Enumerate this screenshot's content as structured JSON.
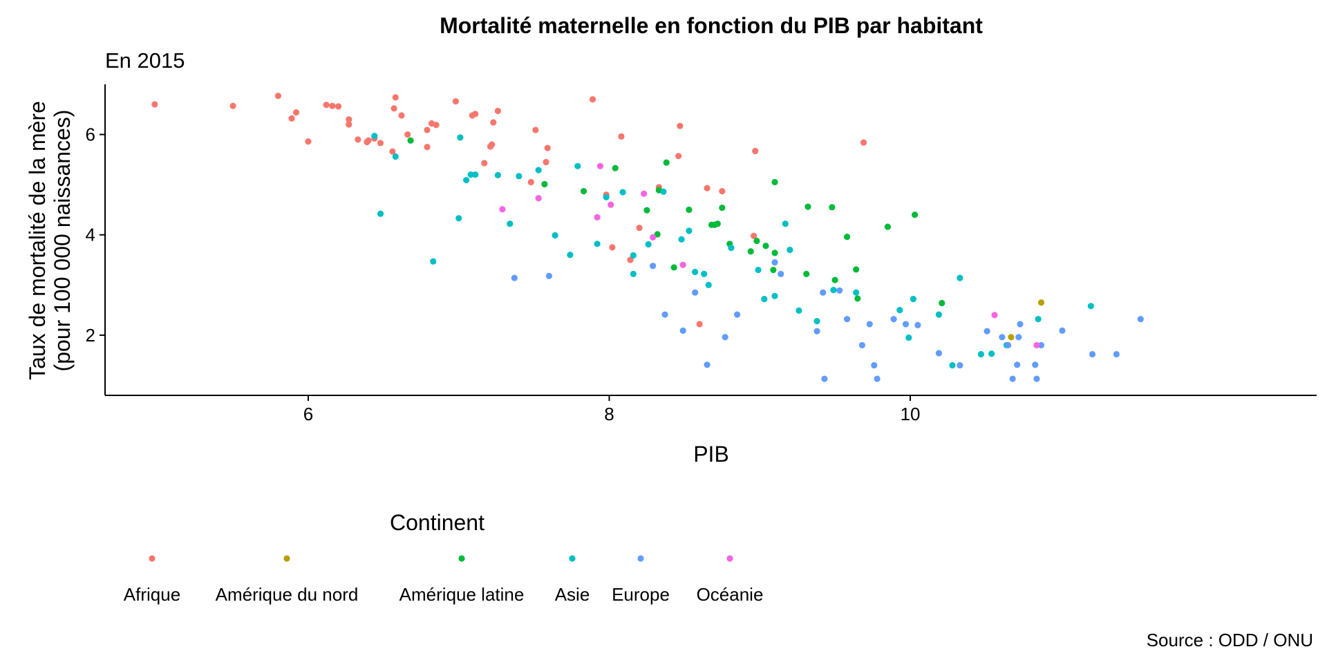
{
  "chart_data": {
    "type": "scatter",
    "title": "Mortalité maternelle en fonction du PIB par habitant",
    "subtitle": "En 2015",
    "xlabel": "PIB",
    "ylabel": [
      "Taux de mortalité de la mère",
      "(pour 100 000 naissances)"
    ],
    "caption": "Source : ODD / ONU",
    "xlim": [
      4.65,
      12.7
    ],
    "ylim": [
      0.8,
      7.0
    ],
    "xticks": [
      6,
      8,
      10
    ],
    "yticks": [
      2,
      4,
      6
    ],
    "grid": false,
    "legend": {
      "title": "Continent",
      "position": "bottom"
    },
    "series": [
      {
        "name": "Afrique",
        "color": "#F8766D",
        "points": [
          [
            4.98,
            6.6
          ],
          [
            5.5,
            6.57
          ],
          [
            5.8,
            6.77
          ],
          [
            5.89,
            6.32
          ],
          [
            5.92,
            6.44
          ],
          [
            6.0,
            5.86
          ],
          [
            6.12,
            6.59
          ],
          [
            6.16,
            6.57
          ],
          [
            6.2,
            6.56
          ],
          [
            6.27,
            6.3
          ],
          [
            6.27,
            6.2
          ],
          [
            6.33,
            5.9
          ],
          [
            6.39,
            5.85
          ],
          [
            6.4,
            5.88
          ],
          [
            6.44,
            5.92
          ],
          [
            6.48,
            5.83
          ],
          [
            6.56,
            5.66
          ],
          [
            6.57,
            6.52
          ],
          [
            6.58,
            6.74
          ],
          [
            6.62,
            6.38
          ],
          [
            6.66,
            6.0
          ],
          [
            6.79,
            5.75
          ],
          [
            6.79,
            6.09
          ],
          [
            6.82,
            6.22
          ],
          [
            6.85,
            6.19
          ],
          [
            6.98,
            6.66
          ],
          [
            7.09,
            6.38
          ],
          [
            7.11,
            6.41
          ],
          [
            7.17,
            5.43
          ],
          [
            7.21,
            5.76
          ],
          [
            7.22,
            5.8
          ],
          [
            7.23,
            6.24
          ],
          [
            7.26,
            6.47
          ],
          [
            7.48,
            5.05
          ],
          [
            7.51,
            6.09
          ],
          [
            7.58,
            5.45
          ],
          [
            7.59,
            5.73
          ],
          [
            7.89,
            6.7
          ],
          [
            7.98,
            4.8
          ],
          [
            8.02,
            3.75
          ],
          [
            8.08,
            5.96
          ],
          [
            8.14,
            3.5
          ],
          [
            8.2,
            4.14
          ],
          [
            8.33,
            4.95
          ],
          [
            8.46,
            5.57
          ],
          [
            8.47,
            6.17
          ],
          [
            8.6,
            2.22
          ],
          [
            8.65,
            4.93
          ],
          [
            8.75,
            4.87
          ],
          [
            8.97,
            5.67
          ],
          [
            8.96,
            3.98
          ],
          [
            9.69,
            5.84
          ]
        ]
      },
      {
        "name": "Amérique du nord",
        "color": "#B79F00",
        "points": [
          [
            10.67,
            1.96
          ],
          [
            10.87,
            2.65
          ]
        ]
      },
      {
        "name": "Amérique latine",
        "color": "#00BA38",
        "points": [
          [
            6.68,
            5.88
          ],
          [
            7.57,
            5.01
          ],
          [
            7.83,
            4.87
          ],
          [
            8.04,
            5.33
          ],
          [
            8.25,
            4.49
          ],
          [
            8.32,
            4.01
          ],
          [
            8.33,
            4.89
          ],
          [
            8.38,
            5.44
          ],
          [
            8.43,
            3.35
          ],
          [
            8.53,
            4.5
          ],
          [
            8.68,
            4.2
          ],
          [
            8.7,
            4.2
          ],
          [
            8.72,
            4.22
          ],
          [
            8.75,
            4.54
          ],
          [
            8.8,
            3.82
          ],
          [
            8.94,
            3.67
          ],
          [
            8.98,
            3.88
          ],
          [
            9.04,
            3.78
          ],
          [
            9.09,
            3.3
          ],
          [
            9.1,
            3.64
          ],
          [
            9.1,
            5.05
          ],
          [
            9.31,
            3.22
          ],
          [
            9.32,
            4.56
          ],
          [
            9.48,
            4.55
          ],
          [
            9.5,
            3.1
          ],
          [
            9.58,
            3.96
          ],
          [
            9.64,
            3.31
          ],
          [
            9.65,
            2.73
          ],
          [
            9.85,
            4.16
          ],
          [
            10.03,
            4.4
          ],
          [
            10.21,
            2.64
          ]
        ]
      },
      {
        "name": "Asie",
        "color": "#00BFC4",
        "points": [
          [
            6.44,
            5.97
          ],
          [
            6.48,
            4.42
          ],
          [
            6.58,
            5.56
          ],
          [
            6.83,
            3.47
          ],
          [
            7.0,
            4.33
          ],
          [
            7.01,
            5.94
          ],
          [
            7.05,
            5.09
          ],
          [
            7.08,
            5.2
          ],
          [
            7.11,
            5.2
          ],
          [
            7.26,
            5.19
          ],
          [
            7.34,
            4.22
          ],
          [
            7.4,
            5.17
          ],
          [
            7.53,
            5.29
          ],
          [
            7.64,
            3.99
          ],
          [
            7.74,
            3.6
          ],
          [
            7.79,
            5.37
          ],
          [
            7.92,
            3.82
          ],
          [
            7.98,
            4.75
          ],
          [
            8.09,
            4.85
          ],
          [
            8.16,
            3.59
          ],
          [
            8.16,
            3.22
          ],
          [
            8.26,
            3.81
          ],
          [
            8.36,
            4.86
          ],
          [
            8.48,
            3.91
          ],
          [
            8.53,
            4.08
          ],
          [
            8.57,
            3.26
          ],
          [
            8.63,
            3.22
          ],
          [
            8.66,
            3.0
          ],
          [
            8.81,
            3.74
          ],
          [
            8.99,
            3.3
          ],
          [
            9.03,
            2.72
          ],
          [
            9.1,
            2.78
          ],
          [
            9.17,
            4.22
          ],
          [
            9.2,
            3.7
          ],
          [
            9.26,
            2.49
          ],
          [
            9.38,
            2.28
          ],
          [
            9.49,
            2.9
          ],
          [
            9.64,
            2.85
          ],
          [
            9.93,
            2.5
          ],
          [
            9.99,
            1.95
          ],
          [
            10.02,
            2.72
          ],
          [
            10.19,
            2.41
          ],
          [
            10.28,
            1.4
          ],
          [
            10.33,
            3.14
          ],
          [
            10.47,
            1.62
          ],
          [
            10.54,
            1.63
          ],
          [
            10.64,
            1.8
          ],
          [
            10.85,
            2.32
          ],
          [
            11.2,
            2.58
          ]
        ]
      },
      {
        "name": "Europe",
        "color": "#619CFF",
        "points": [
          [
            7.37,
            3.14
          ],
          [
            7.6,
            3.18
          ],
          [
            8.29,
            3.38
          ],
          [
            8.37,
            2.41
          ],
          [
            8.49,
            2.09
          ],
          [
            8.57,
            2.85
          ],
          [
            8.65,
            1.41
          ],
          [
            8.77,
            1.96
          ],
          [
            8.85,
            2.41
          ],
          [
            9.1,
            3.45
          ],
          [
            9.14,
            3.22
          ],
          [
            9.38,
            2.08
          ],
          [
            9.42,
            2.85
          ],
          [
            9.43,
            1.13
          ],
          [
            9.53,
            2.89
          ],
          [
            9.58,
            2.32
          ],
          [
            9.68,
            1.8
          ],
          [
            9.73,
            2.22
          ],
          [
            9.76,
            1.4
          ],
          [
            9.78,
            1.13
          ],
          [
            9.89,
            2.32
          ],
          [
            9.97,
            2.22
          ],
          [
            10.05,
            2.2
          ],
          [
            10.19,
            1.64
          ],
          [
            10.33,
            1.4
          ],
          [
            10.51,
            2.08
          ],
          [
            10.61,
            1.96
          ],
          [
            10.65,
            1.8
          ],
          [
            10.68,
            1.13
          ],
          [
            10.72,
            1.96
          ],
          [
            10.71,
            1.41
          ],
          [
            10.73,
            2.22
          ],
          [
            10.83,
            1.41
          ],
          [
            10.84,
            1.13
          ],
          [
            10.87,
            1.8
          ],
          [
            11.01,
            2.09
          ],
          [
            11.21,
            1.62
          ],
          [
            11.37,
            1.62
          ],
          [
            11.53,
            2.32
          ]
        ]
      },
      {
        "name": "Océanie",
        "color": "#F564E3",
        "points": [
          [
            7.29,
            4.51
          ],
          [
            7.53,
            4.73
          ],
          [
            7.92,
            4.35
          ],
          [
            7.94,
            5.37
          ],
          [
            8.01,
            4.6
          ],
          [
            8.23,
            4.82
          ],
          [
            8.29,
            3.95
          ],
          [
            8.49,
            3.4
          ],
          [
            10.56,
            2.4
          ],
          [
            10.84,
            1.8
          ]
        ]
      }
    ]
  }
}
